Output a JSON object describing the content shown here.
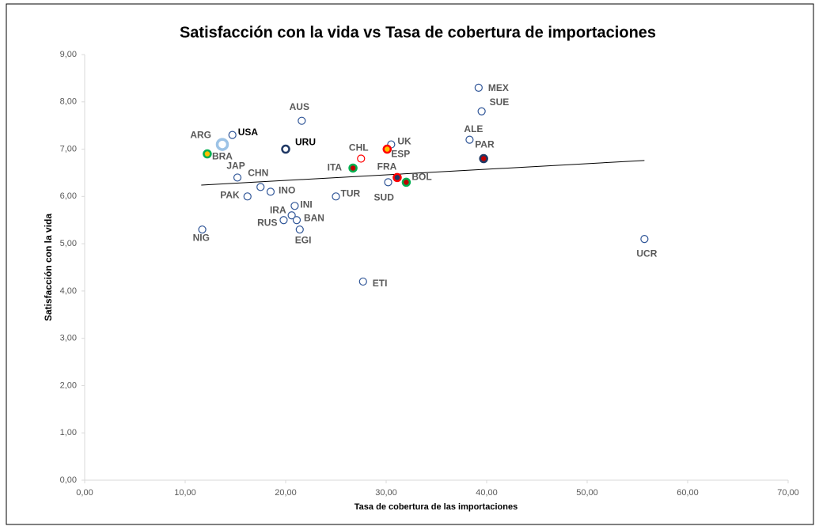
{
  "chart_data": {
    "type": "scatter",
    "title": "Satisfacción con la vida vs Tasa de cobertura de importaciones",
    "x_label": "Tasa de cobertura de las importaciones",
    "y_label": "Satisfacción con la vida",
    "xlim": [
      0,
      70
    ],
    "ylim": [
      0,
      9
    ],
    "xticks": [
      {
        "value": 0,
        "label": "0,00"
      },
      {
        "value": 10,
        "label": "10,00"
      },
      {
        "value": 20,
        "label": "20,00"
      },
      {
        "value": 30,
        "label": "30,00"
      },
      {
        "value": 40,
        "label": "40,00"
      },
      {
        "value": 50,
        "label": "50,00"
      },
      {
        "value": 60,
        "label": "60,00"
      },
      {
        "value": 70,
        "label": "70,00"
      }
    ],
    "yticks": [
      {
        "value": 0,
        "label": "0,00"
      },
      {
        "value": 1,
        "label": "1,00"
      },
      {
        "value": 2,
        "label": "2,00"
      },
      {
        "value": 3,
        "label": "3,00"
      },
      {
        "value": 4,
        "label": "4,00"
      },
      {
        "value": 5,
        "label": "5,00"
      },
      {
        "value": 6,
        "label": "6,00"
      },
      {
        "value": 7,
        "label": "7,00"
      },
      {
        "value": 8,
        "label": "8,00"
      },
      {
        "value": 9,
        "label": "9,00"
      }
    ],
    "grid": false,
    "labels": [
      "MEX",
      "SUE",
      "AUS",
      "USA",
      "ARG",
      "UK",
      "ALE",
      "URU",
      "ESP",
      "BRA",
      "CHL",
      "PAR",
      "ITA",
      "JAP",
      "FRA",
      "BOL",
      "SUD",
      "CHN",
      "INO",
      "PAK",
      "TUR",
      "INI",
      "IRA",
      "BAN",
      "RUS",
      "EGI",
      "NIG",
      "UCR",
      "ETI"
    ],
    "x": [
      39.2,
      39.5,
      21.6,
      14.7,
      13.7,
      30.5,
      38.3,
      20.0,
      30.1,
      12.2,
      27.5,
      39.7,
      26.7,
      15.2,
      31.1,
      32.0,
      30.2,
      17.5,
      18.5,
      16.2,
      25.0,
      20.9,
      20.6,
      21.1,
      19.8,
      21.4,
      11.7,
      55.7,
      27.7
    ],
    "y": [
      8.3,
      7.8,
      7.6,
      7.3,
      7.1,
      7.1,
      7.2,
      7.0,
      7.0,
      6.9,
      6.8,
      6.8,
      6.6,
      6.4,
      6.4,
      6.3,
      6.3,
      6.2,
      6.1,
      6.0,
      6.0,
      5.8,
      5.6,
      5.5,
      5.5,
      5.3,
      5.3,
      5.1,
      4.2
    ],
    "edge_colors": [
      "#2f5597",
      "#2f5597",
      "#2f5597",
      "#2f5597",
      "#9dc3e6",
      "#2f5597",
      "#2f5597",
      "#1f3864",
      "#ff0000",
      "#00b050",
      "#ff0000",
      "#1f3864",
      "#00b050",
      "#2f5597",
      "#ff0000",
      "#00b050",
      "#2f5597",
      "#2f5597",
      "#2f5597",
      "#2f5597",
      "#2f5597",
      "#2f5597",
      "#2f5597",
      "#2f5597",
      "#2f5597",
      "#2f5597",
      "#2f5597",
      "#2f5597",
      "#2f5597"
    ],
    "fill_colors": [
      "#ffffff",
      "#ffffff",
      "#ffffff",
      "#ffffff",
      "#ffffff",
      "#ffffff",
      "#ffffff",
      "#ffffff",
      "#ffc000",
      "#ffc000",
      "#ffffff",
      "#c00000",
      "#c00000",
      "#ffffff",
      "#1f3864",
      "#c00000",
      "#ffffff",
      "#ffffff",
      "#ffffff",
      "#ffffff",
      "#ffffff",
      "#ffffff",
      "#ffffff",
      "#ffffff",
      "#ffffff",
      "#ffffff",
      "#ffffff",
      "#ffffff",
      "#ffffff"
    ],
    "label_colors": [
      "#595959",
      "#595959",
      "#595959",
      "#000000",
      "#595959",
      "#595959",
      "#595959",
      "#000000",
      "#595959",
      "#595959",
      "#595959",
      "#595959",
      "#595959",
      "#595959",
      "#595959",
      "#595959",
      "#595959",
      "#595959",
      "#595959",
      "#595959",
      "#595959",
      "#595959",
      "#595959",
      "#595959",
      "#595959",
      "#595959",
      "#595959",
      "#595959",
      "#595959"
    ],
    "trendline": {
      "x": [
        11.6,
        55.7
      ],
      "y": [
        6.24,
        6.76
      ]
    }
  }
}
